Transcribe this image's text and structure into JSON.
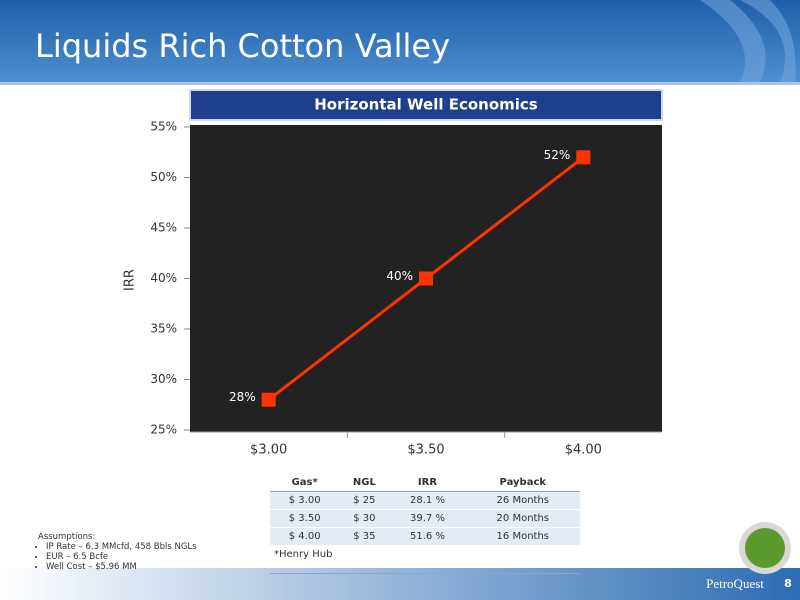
{
  "slide_title": "Liquids Rich Cotton Valley",
  "chart_data": {
    "type": "line",
    "title": "Horizontal Well Economics",
    "categories": [
      "$3.00",
      "$3.50",
      "$4.00"
    ],
    "values": [
      28,
      40,
      52
    ],
    "value_labels": [
      "28%",
      "40%",
      "52%"
    ],
    "color": "#ff3300",
    "y_label": "IRR",
    "ylim": [
      25,
      55
    ],
    "yticks": [
      {
        "value": 25,
        "label": "25%"
      },
      {
        "value": 30,
        "label": "30%"
      },
      {
        "value": 35,
        "label": "35%"
      },
      {
        "value": 40,
        "label": "40%"
      },
      {
        "value": 45,
        "label": "45%"
      },
      {
        "value": 50,
        "label": "50%"
      },
      {
        "value": 55,
        "label": "55%"
      }
    ]
  },
  "table": {
    "header": [
      "Gas*",
      "NGL",
      "IRR",
      "Payback"
    ],
    "rows": [
      [
        "$ 3.00",
        "$ 25",
        "28.1 %",
        "26 Months"
      ],
      [
        "$ 3.50",
        "$ 30",
        "39.7 %",
        "20 Months"
      ],
      [
        "$ 4.00",
        "$ 35",
        "51.6 %",
        "16 Months"
      ]
    ],
    "footnote": "*Henry Hub"
  },
  "assumptions": {
    "title": "Assumptions:",
    "items": [
      "IP Rate – 6.3 MMcfd, 458 Bbls NGLs",
      "EUR – 6.5 Bcfe",
      "Well Cost – $5.96 MM"
    ]
  },
  "footer": {
    "brand": "PetroQuest",
    "page": "8"
  }
}
